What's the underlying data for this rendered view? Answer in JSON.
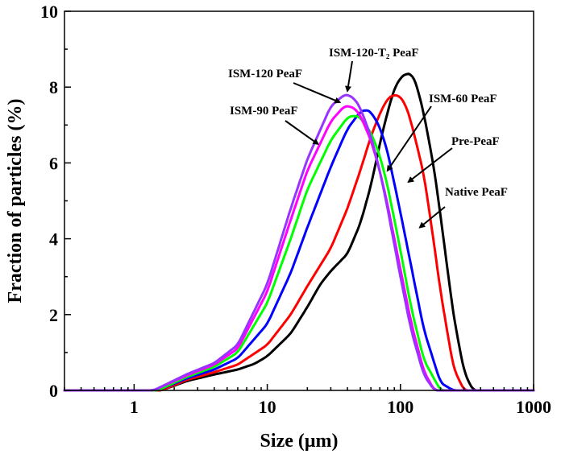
{
  "chart_data": {
    "type": "line",
    "xscale": "log",
    "xlabel": "Size (μm)",
    "ylabel": "Fraction of particles (%)",
    "xlim": [
      0.3,
      1000
    ],
    "ylim": [
      0,
      10
    ],
    "xticks": [
      {
        "value": 1,
        "label": "1"
      },
      {
        "value": 10,
        "label": "10"
      },
      {
        "value": 100,
        "label": "100"
      },
      {
        "value": 1000,
        "label": "1000"
      }
    ],
    "yticks": [
      {
        "value": 0,
        "label": "0"
      },
      {
        "value": 2,
        "label": "2"
      },
      {
        "value": 4,
        "label": "4"
      },
      {
        "value": 6,
        "label": "6"
      },
      {
        "value": 8,
        "label": "8"
      },
      {
        "value": 10,
        "label": "10"
      }
    ],
    "grid": false,
    "legend": "none",
    "series": [
      {
        "name": "Native PeaF",
        "color": "#000000",
        "x": [
          0.3,
          1.6,
          2.5,
          4,
          6,
          8,
          10,
          15,
          20,
          25,
          30,
          40,
          50,
          60,
          70,
          80,
          90,
          100,
          110,
          120,
          130,
          150,
          180,
          200,
          250,
          300,
          350,
          1000
        ],
        "y": [
          0,
          0,
          0.25,
          0.42,
          0.55,
          0.7,
          0.9,
          1.5,
          2.2,
          2.8,
          3.15,
          3.6,
          4.4,
          5.4,
          6.5,
          7.35,
          7.95,
          8.25,
          8.35,
          8.35,
          8.15,
          7.3,
          5.8,
          4.6,
          2.0,
          0.5,
          0,
          0
        ]
      },
      {
        "name": "Pre-PeaF",
        "color": "#ff0000",
        "x": [
          0.3,
          1.6,
          2.5,
          4,
          6,
          10,
          15,
          20,
          30,
          40,
          50,
          60,
          70,
          80,
          90,
          100,
          110,
          120,
          150,
          180,
          200,
          250,
          300,
          1000
        ],
        "y": [
          0,
          0,
          0.28,
          0.48,
          0.68,
          1.2,
          2.0,
          2.75,
          3.75,
          4.8,
          5.8,
          6.7,
          7.3,
          7.7,
          7.8,
          7.75,
          7.5,
          7.1,
          5.7,
          3.8,
          2.6,
          0.6,
          0,
          0
        ]
      },
      {
        "name": "ISM-60 PeaF",
        "color": "#0000ff",
        "x": [
          0.3,
          1.5,
          2.5,
          4,
          6,
          10,
          15,
          20,
          30,
          40,
          50,
          55,
          60,
          70,
          80,
          100,
          120,
          150,
          200,
          250,
          1000
        ],
        "y": [
          0,
          0,
          0.32,
          0.55,
          0.85,
          1.75,
          3.1,
          4.3,
          5.9,
          6.9,
          7.35,
          7.4,
          7.35,
          6.95,
          6.3,
          4.7,
          3.3,
          1.6,
          0.2,
          0,
          0
        ]
      },
      {
        "name": "ISM-90 PeaF",
        "color": "#00ff00",
        "x": [
          0.3,
          1.5,
          2.5,
          4,
          6,
          10,
          15,
          20,
          30,
          40,
          45,
          50,
          60,
          70,
          80,
          100,
          120,
          150,
          200,
          1000
        ],
        "y": [
          0,
          0,
          0.36,
          0.62,
          1.0,
          2.3,
          4.0,
          5.3,
          6.6,
          7.2,
          7.25,
          7.2,
          6.8,
          6.2,
          5.4,
          3.7,
          2.2,
          0.8,
          0,
          0
        ]
      },
      {
        "name": "ISM-120 PeaF",
        "color": "#ff00ff",
        "x": [
          0.3,
          1.4,
          2.5,
          4,
          6,
          10,
          15,
          20,
          30,
          38,
          40,
          45,
          50,
          60,
          70,
          80,
          100,
          120,
          150,
          180,
          1000
        ],
        "y": [
          0,
          0,
          0.4,
          0.68,
          1.1,
          2.6,
          4.5,
          5.8,
          7.1,
          7.5,
          7.5,
          7.45,
          7.25,
          6.6,
          5.8,
          4.9,
          3.2,
          1.8,
          0.5,
          0,
          0
        ]
      },
      {
        "name": "ISM-120-T₂ PeaF",
        "color": "#9933ff",
        "x": [
          0.3,
          1.4,
          2.5,
          4,
          6,
          10,
          15,
          20,
          30,
          38,
          40,
          45,
          50,
          60,
          70,
          80,
          100,
          120,
          150,
          180,
          1000
        ],
        "y": [
          0,
          0,
          0.43,
          0.72,
          1.2,
          2.8,
          4.8,
          6.1,
          7.5,
          7.8,
          7.8,
          7.7,
          7.45,
          6.7,
          5.8,
          4.8,
          3.0,
          1.6,
          0.4,
          0,
          0
        ]
      }
    ],
    "annotations": [
      {
        "id": "native",
        "label": "Native PeaF",
        "point_to": [
          140,
          4.3
        ]
      },
      {
        "id": "pre",
        "label": "Pre-PeaF",
        "point_to": [
          115,
          5.5
        ]
      },
      {
        "id": "ism60",
        "label": "ISM-60 PeaF",
        "point_to": [
          80,
          5.8
        ]
      },
      {
        "id": "ism90",
        "label": "ISM-90 PeaF",
        "point_to": [
          24,
          6.5
        ]
      },
      {
        "id": "ism120",
        "label": "ISM-120 PeaF",
        "point_to": [
          35,
          7.6
        ]
      },
      {
        "id": "ism120t2",
        "label": "ISM-120-T₂ PeaF",
        "point_to": [
          40,
          7.9
        ]
      }
    ]
  }
}
